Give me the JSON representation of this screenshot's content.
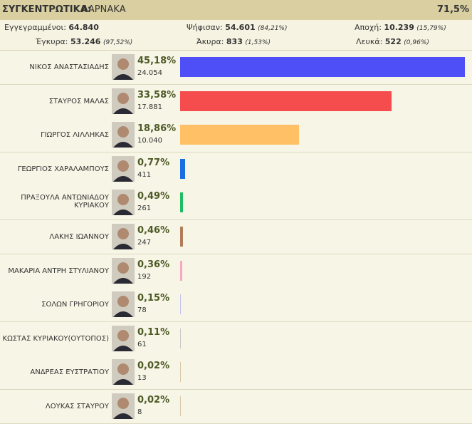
{
  "header": {
    "title": "ΣΥΓΚΕΝΤΡΩΤΙΚΑ:",
    "district": "ΛΑΡΝΑΚΑ",
    "counted": "71,5%"
  },
  "summary": [
    {
      "label": "Εγγεγραμμένοι:",
      "value": "64.840",
      "note": null
    },
    {
      "label": "Ψήφισαν:",
      "value": "54.601",
      "note": "(84,21%)"
    },
    {
      "label": "Αποχή:",
      "value": "10.239",
      "note": "(15,79%)"
    },
    {
      "label": "Έγκυρα:",
      "value": "53.246",
      "note": "(97,52%)"
    },
    {
      "label": "Άκυρα:",
      "value": "833",
      "note": "(1,53%)"
    },
    {
      "label": "Λευκά:",
      "value": "522",
      "note": "(0,96%)"
    }
  ],
  "candidates": [
    {
      "name": "ΝΙΚΟΣ ΑΝΑΣΤΑΣΙΑΔΗΣ",
      "percent": {
        "value": 45.18,
        "label": "45,18%"
      },
      "votes": "24.054",
      "color": "#4f4ff7"
    },
    {
      "name": "ΣΤΑΥΡΟΣ ΜΑΛΑΣ",
      "percent": {
        "value": 33.58,
        "label": "33,58%"
      },
      "votes": "17.881",
      "color": "#f54d4d"
    },
    {
      "name": "ΓΙΩΡΓΟΣ ΛΙΛΛΗΚΑΣ",
      "percent": {
        "value": 18.86,
        "label": "18,86%"
      },
      "votes": "10.040",
      "color": "#ffc066"
    },
    {
      "name": "ΓΕΩΡΓΙΟΣ ΧΑΡΑΛΑΜΠΟΥΣ",
      "percent": {
        "value": 0.77,
        "label": "0,77%"
      },
      "votes": "411",
      "color": "#1a6fe0"
    },
    {
      "name": "ΠΡΑΞΟΥΛΑ ΑΝΤΩΝΙΑΔΟΥ ΚΥΡΙΑΚΟΥ",
      "percent": {
        "value": 0.49,
        "label": "0,49%"
      },
      "votes": "261",
      "color": "#22bb66"
    },
    {
      "name": "ΛΑΚΗΣ ΙΩΑΝΝΟΥ",
      "percent": {
        "value": 0.46,
        "label": "0,46%"
      },
      "votes": "247",
      "color": "#b07c5a"
    },
    {
      "name": "ΜΑΚΑΡΙΑ ΑΝΤΡΗ ΣΤΥΛΙΑΝΟΥ",
      "percent": {
        "value": 0.36,
        "label": "0,36%"
      },
      "votes": "192",
      "color": "#f7a8c4"
    },
    {
      "name": "ΣΟΛΩΝ ΓΡΗΓΟΡΙΟΥ",
      "percent": {
        "value": 0.15,
        "label": "0,15%"
      },
      "votes": "78",
      "color": "#c4c4ec"
    },
    {
      "name": "ΚΩΣΤΑΣ ΚΥΡΙΑΚΟΥ(ΟΥΤΟΠΟΣ)",
      "percent": {
        "value": 0.11,
        "label": "0,11%"
      },
      "votes": "61",
      "color": "#c8c8c8"
    },
    {
      "name": "ΑΝΔΡΕΑΣ ΕΥΣΤΡΑΤΙΟΥ",
      "percent": {
        "value": 0.02,
        "label": "0,02%"
      },
      "votes": "13",
      "color": "#d8c8a8"
    },
    {
      "name": "ΛΟΥΚΑΣ ΣΤΑΥΡΟΥ",
      "percent": {
        "value": 0.02,
        "label": "0,02%"
      },
      "votes": "8",
      "color": "#d8c8a8"
    }
  ]
}
